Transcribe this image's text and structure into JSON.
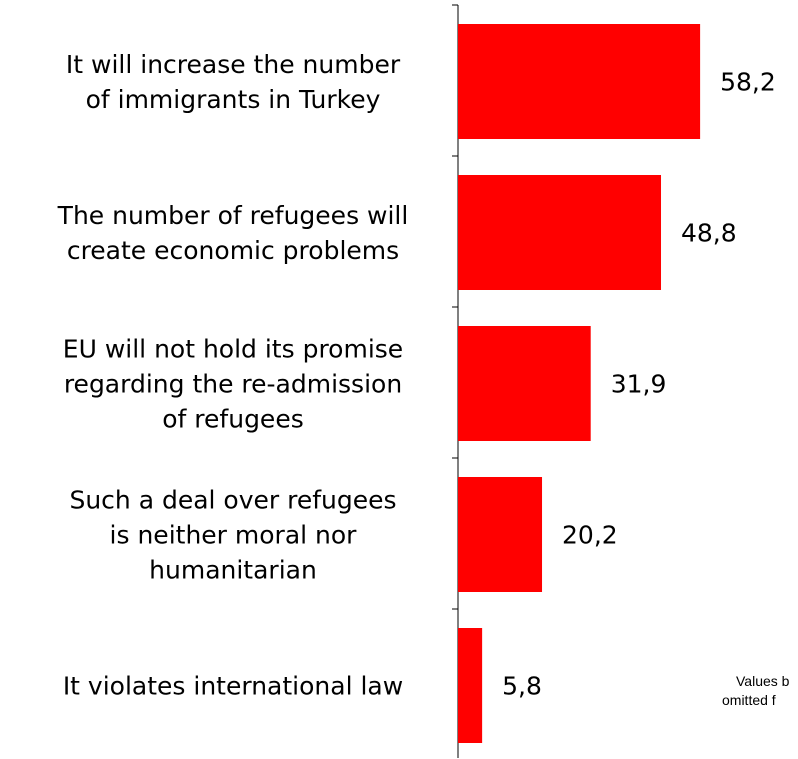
{
  "chart_data": {
    "type": "bar",
    "orientation": "horizontal",
    "categories": [
      [
        "It will increase the number",
        "of immigrants in Turkey"
      ],
      [
        "The number of refugees will",
        "create economic problems"
      ],
      [
        "EU will not hold its promise",
        "regarding the re-admission",
        "of refugees"
      ],
      [
        "Such a deal over refugees",
        "is neither moral nor",
        "humanitarian"
      ],
      [
        "It violates international law"
      ]
    ],
    "values": [
      58.2,
      48.8,
      31.9,
      20.2,
      5.8
    ],
    "value_labels": [
      "58,2",
      "48,8",
      "31,9",
      "20,2",
      "5,8"
    ],
    "bar_color": "#ff0000",
    "axis_color": "#000000",
    "xlim": [
      0,
      62.5
    ],
    "grid": false,
    "note": [
      "Values b",
      "omitted f"
    ]
  }
}
